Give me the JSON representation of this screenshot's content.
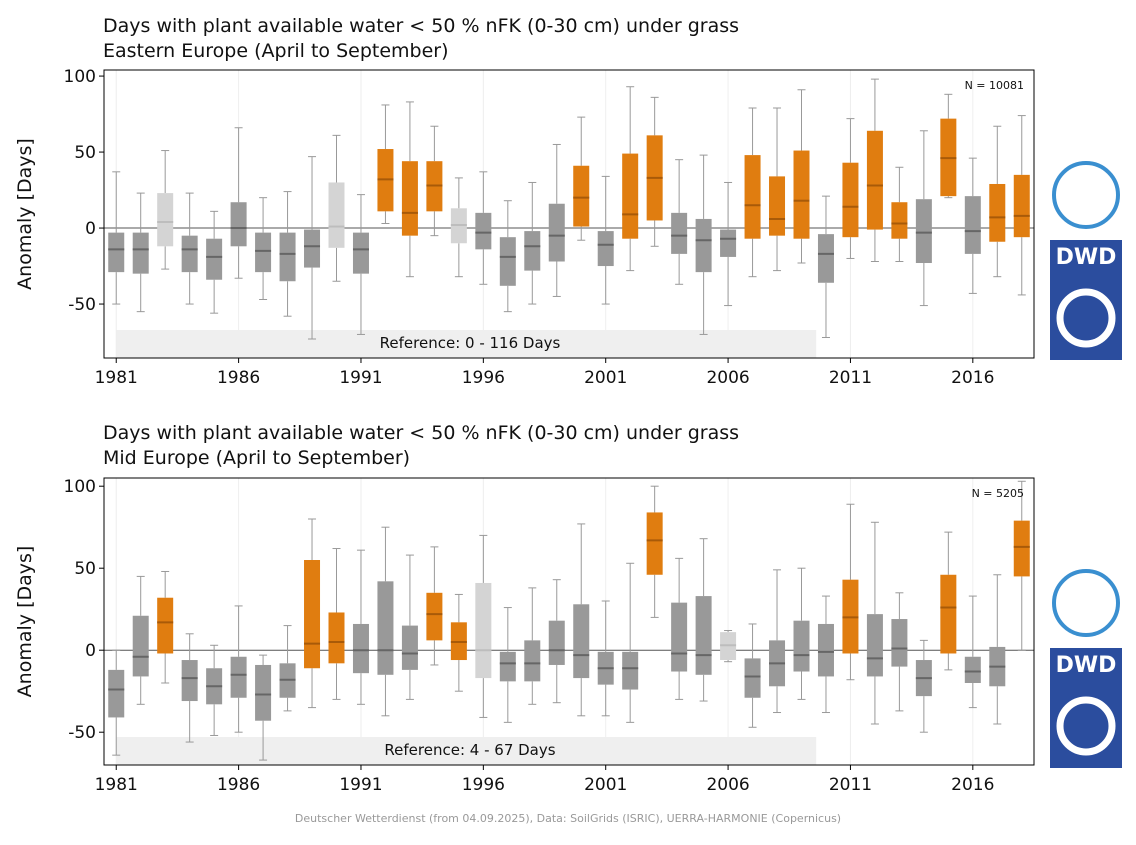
{
  "chart_data": [
    {
      "type": "box",
      "title": "Days with plant available water < 50 % nFK (0-30 cm) under grass",
      "subtitle": "Eastern Europe (April to September)",
      "ylabel": "Anomaly [Days]",
      "annotation": "N = 10081",
      "reference": "Reference: 0 - 116 Days",
      "xlim": [
        1980.5,
        2018.5
      ],
      "xticks": [
        1981,
        1986,
        1991,
        1996,
        2001,
        2006,
        2011,
        2016
      ],
      "ylim": [
        -85.5,
        104
      ],
      "yticks": [
        -50,
        0,
        50,
        100
      ],
      "grid": true,
      "x": [
        1981,
        1982,
        1983,
        1984,
        1985,
        1986,
        1987,
        1988,
        1989,
        1990,
        1991,
        1992,
        1993,
        1994,
        1995,
        1996,
        1997,
        1998,
        1999,
        2000,
        2001,
        2002,
        2003,
        2004,
        2005,
        2006,
        2007,
        2008,
        2009,
        2010,
        2011,
        2012,
        2013,
        2014,
        2015,
        2016,
        2017,
        2018
      ],
      "whislo": [
        -50,
        -55,
        -27,
        -50,
        -56,
        -33,
        -47,
        -58,
        -73,
        -35,
        -70,
        3,
        -32,
        -5,
        -32,
        -37,
        -55,
        -50,
        -45,
        -8,
        -50,
        -28,
        -12,
        -37,
        -70,
        -51,
        -32,
        -28,
        -23,
        -72,
        -20,
        -22,
        -22,
        -51,
        20,
        -43,
        -32,
        -44
      ],
      "q1": [
        -29,
        -30,
        -12,
        -29,
        -34,
        -12,
        -29,
        -35,
        -26,
        -13,
        -30,
        11,
        -5,
        11,
        -10,
        -14,
        -38,
        -28,
        -22,
        1,
        -25,
        -7,
        5,
        -17,
        -29,
        -19,
        -7,
        -5,
        -7,
        -36,
        -6,
        -1,
        -7,
        -23,
        21,
        -17,
        -9,
        -6
      ],
      "med": [
        -14,
        -14,
        4,
        -14,
        -19,
        0,
        -15,
        -17,
        -12,
        1,
        -14,
        32,
        10,
        28,
        2,
        -3,
        -19,
        -12,
        -5,
        20,
        -11,
        9,
        33,
        -5,
        -8,
        -7,
        15,
        6,
        18,
        -17,
        14,
        28,
        3,
        -3,
        46,
        -2,
        7,
        8
      ],
      "q3": [
        -3,
        -3,
        23,
        -5,
        -7,
        17,
        -3,
        -3,
        -1,
        30,
        -3,
        52,
        44,
        44,
        13,
        10,
        -6,
        -2,
        16,
        41,
        -2,
        49,
        61,
        10,
        6,
        -1,
        48,
        34,
        51,
        -4,
        43,
        64,
        17,
        19,
        72,
        21,
        29,
        35
      ],
      "whishi": [
        37,
        23,
        51,
        23,
        11,
        66,
        20,
        24,
        47,
        61,
        22,
        81,
        83,
        67,
        33,
        37,
        18,
        30,
        55,
        73,
        34,
        93,
        86,
        45,
        48,
        30,
        79,
        79,
        91,
        21,
        72,
        98,
        40,
        64,
        88,
        46,
        67,
        74
      ],
      "colors": [
        "#999999",
        "#999999",
        "#d4d4d4",
        "#999999",
        "#999999",
        "#999999",
        "#999999",
        "#999999",
        "#999999",
        "#d4d4d4",
        "#999999",
        "#e07d10",
        "#e07d10",
        "#e07d10",
        "#d4d4d4",
        "#999999",
        "#999999",
        "#999999",
        "#999999",
        "#e07d10",
        "#999999",
        "#e07d10",
        "#e07d10",
        "#999999",
        "#999999",
        "#999999",
        "#e07d10",
        "#e07d10",
        "#e07d10",
        "#999999",
        "#e07d10",
        "#e07d10",
        "#e07d10",
        "#999999",
        "#e07d10",
        "#999999",
        "#e07d10",
        "#e07d10"
      ]
    },
    {
      "type": "box",
      "title": "Days with plant available water < 50 % nFK (0-30 cm) under grass",
      "subtitle": "Mid Europe (April to September)",
      "ylabel": "Anomaly [Days]",
      "annotation": "N = 5205",
      "reference": "Reference: 4 - 67 Days",
      "xlim": [
        1980.5,
        2018.5
      ],
      "xticks": [
        1981,
        1986,
        1991,
        1996,
        2001,
        2006,
        2011,
        2016
      ],
      "ylim": [
        -70,
        105
      ],
      "yticks": [
        -50,
        0,
        50,
        100
      ],
      "grid": true,
      "x": [
        1981,
        1982,
        1983,
        1984,
        1985,
        1986,
        1987,
        1988,
        1989,
        1990,
        1991,
        1992,
        1993,
        1994,
        1995,
        1996,
        1997,
        1998,
        1999,
        2000,
        2001,
        2002,
        2003,
        2004,
        2005,
        2006,
        2007,
        2008,
        2009,
        2010,
        2011,
        2012,
        2013,
        2014,
        2015,
        2016,
        2017,
        2018
      ],
      "whislo": [
        -64,
        -33,
        -20,
        -56,
        -52,
        -50,
        -67,
        -37,
        -35,
        -30,
        -33,
        -40,
        -30,
        -9,
        -25,
        -41,
        -44,
        -33,
        -32,
        -40,
        -40,
        -44,
        20,
        -30,
        -31,
        -7,
        -47,
        -38,
        -30,
        -38,
        -18,
        -45,
        -37,
        -50,
        -12,
        -35,
        -45,
        0
      ],
      "q1": [
        -41,
        -16,
        -2,
        -31,
        -33,
        -29,
        -43,
        -29,
        -11,
        -8,
        -14,
        -15,
        -12,
        6,
        -6,
        -17,
        -19,
        -19,
        -9,
        -17,
        -21,
        -24,
        46,
        -13,
        -15,
        -6,
        -29,
        -22,
        -13,
        -16,
        -2,
        -16,
        -10,
        -28,
        -2,
        -20,
        -22,
        45
      ],
      "med": [
        -24,
        -4,
        17,
        -17,
        -22,
        -15,
        -27,
        -18,
        4,
        5,
        0,
        0,
        -2,
        22,
        5,
        0,
        -8,
        -8,
        0,
        -3,
        -11,
        -11,
        67,
        -2,
        -3,
        3,
        -16,
        -8,
        -3,
        -1,
        20,
        -5,
        1,
        -17,
        26,
        -13,
        -10,
        63
      ],
      "q3": [
        -12,
        21,
        32,
        -6,
        -11,
        -4,
        -9,
        -8,
        55,
        23,
        16,
        42,
        15,
        35,
        17,
        41,
        -1,
        6,
        18,
        28,
        -1,
        -1,
        84,
        29,
        33,
        11,
        -5,
        6,
        18,
        16,
        43,
        22,
        19,
        -6,
        46,
        -4,
        2,
        79
      ],
      "whishi": [
        0,
        45,
        48,
        10,
        3,
        27,
        -3,
        15,
        80,
        62,
        61,
        75,
        58,
        63,
        34,
        70,
        26,
        38,
        43,
        77,
        30,
        53,
        100,
        56,
        68,
        12,
        16,
        49,
        50,
        33,
        89,
        78,
        35,
        6,
        72,
        33,
        46,
        103
      ],
      "colors": [
        "#999999",
        "#999999",
        "#e07d10",
        "#999999",
        "#999999",
        "#999999",
        "#999999",
        "#999999",
        "#e07d10",
        "#e07d10",
        "#999999",
        "#999999",
        "#999999",
        "#e07d10",
        "#e07d10",
        "#d4d4d4",
        "#999999",
        "#999999",
        "#999999",
        "#999999",
        "#999999",
        "#999999",
        "#e07d10",
        "#999999",
        "#999999",
        "#d4d4d4",
        "#999999",
        "#999999",
        "#999999",
        "#999999",
        "#e07d10",
        "#999999",
        "#999999",
        "#999999",
        "#e07d10",
        "#999999",
        "#999999",
        "#e07d10"
      ]
    }
  ],
  "footer": "Deutscher Wetterdienst (from 04.09.2025), Data: SoilGrids (ISRIC), UERRA-HARMONIE (Copernicus)"
}
